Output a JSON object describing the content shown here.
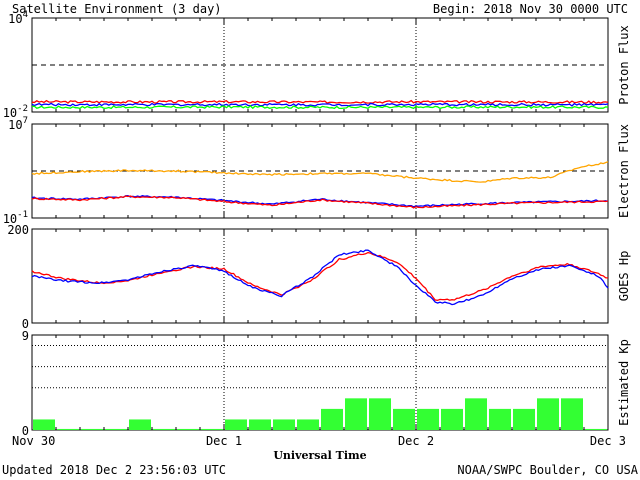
{
  "header": {
    "title": "Satellite Environment (3 day)",
    "begin": "Begin:  2018 Nov 30 0000 UTC"
  },
  "footer": {
    "updated": "Updated 2018 Dec  2 23:56:03 UTC",
    "credit": "NOAA/SWPC Boulder, CO USA"
  },
  "colors": {
    "red": "#ff0000",
    "blue": "#0000ff",
    "green": "#00ff00",
    "orange": "#ffa500",
    "bar": "#33ff33"
  },
  "x_axis": {
    "label": "Universal Time",
    "ticks": [
      {
        "day": 0,
        "label": "Nov 30"
      },
      {
        "day": 1,
        "label": "Dec 1"
      },
      {
        "day": 2,
        "label": "Dec 2"
      },
      {
        "day": 3,
        "label": "Dec 3"
      }
    ]
  },
  "chart_data": [
    {
      "type": "line",
      "name": "proton-flux",
      "ylabel": "Proton Flux",
      "yscale": "log",
      "ylim": [
        0.01,
        10000
      ],
      "ytick_labels": [
        {
          "base": "10",
          "exp": "4",
          "value": 10000
        },
        {
          "base": "10",
          "exp": "-2",
          "value": 0.01
        }
      ],
      "threshold": 10,
      "series": [
        {
          "color": "red",
          "x": [
            0,
            0.5,
            1,
            1.5,
            2,
            2.5,
            3
          ],
          "y": [
            0.045,
            0.044,
            0.045,
            0.043,
            0.045,
            0.044,
            0.043
          ]
        },
        {
          "color": "blue",
          "x": [
            0,
            0.5,
            1,
            1.5,
            2,
            2.5,
            3
          ],
          "y": [
            0.03,
            0.029,
            0.03,
            0.029,
            0.03,
            0.029,
            0.029
          ]
        },
        {
          "color": "green",
          "x": [
            0,
            0.5,
            1,
            1.5,
            2,
            2.5,
            3
          ],
          "y": [
            0.02,
            0.02,
            0.021,
            0.02,
            0.02,
            0.021,
            0.02
          ]
        }
      ]
    },
    {
      "type": "line",
      "name": "electron-flux",
      "ylabel": "Electron Flux",
      "yscale": "log",
      "ylim": [
        0.1,
        10000000
      ],
      "ytick_labels": [
        {
          "base": "10",
          "exp": "7",
          "value": 10000000
        },
        {
          "base": "10",
          "exp": "-1",
          "value": 0.1
        }
      ],
      "threshold": 1000,
      "series": [
        {
          "color": "orange",
          "x": [
            0,
            0.25,
            0.5,
            0.75,
            1.0,
            1.2,
            1.5,
            1.75,
            2.0,
            2.2,
            2.35,
            2.5,
            2.7,
            2.85,
            3.0
          ],
          "y": [
            600,
            900,
            1100,
            1000,
            700,
            500,
            600,
            600,
            250,
            150,
            120,
            250,
            280,
            2000,
            6000
          ]
        },
        {
          "color": "blue",
          "x": [
            0,
            0.25,
            0.5,
            0.75,
            1.0,
            1.25,
            1.5,
            1.75,
            2.0,
            2.25,
            2.5,
            2.75,
            3.0
          ],
          "y": [
            5,
            4,
            7,
            6,
            3,
            1.5,
            4,
            2,
            1,
            1.5,
            2,
            2.5,
            3
          ]
        },
        {
          "color": "red",
          "x": [
            0,
            0.25,
            0.5,
            0.75,
            1.0,
            1.25,
            1.5,
            1.75,
            2.0,
            2.25,
            2.5,
            2.75,
            3.0
          ],
          "y": [
            4.5,
            3.5,
            6.5,
            5.5,
            2.5,
            1.2,
            3.5,
            1.8,
            0.8,
            1.2,
            1.8,
            2.2,
            2.6
          ]
        }
      ]
    },
    {
      "type": "line",
      "name": "goes-hp",
      "ylabel": "GOES Hp",
      "yscale": "linear",
      "ylim": [
        0,
        200
      ],
      "ytick_labels": [
        {
          "label": "200",
          "value": 200
        },
        {
          "label": "0",
          "value": 0
        }
      ],
      "series": [
        {
          "color": "red",
          "x": [
            0,
            0.15,
            0.35,
            0.5,
            0.7,
            0.85,
            1.0,
            1.15,
            1.3,
            1.45,
            1.6,
            1.75,
            1.9,
            2.0,
            2.1,
            2.2,
            2.35,
            2.5,
            2.65,
            2.8,
            2.95,
            3.0
          ],
          "y": [
            110,
            95,
            85,
            90,
            110,
            120,
            115,
            80,
            60,
            90,
            135,
            150,
            130,
            95,
            50,
            50,
            70,
            100,
            120,
            125,
            105,
            95
          ]
        },
        {
          "color": "blue",
          "x": [
            0,
            0.15,
            0.35,
            0.5,
            0.7,
            0.85,
            1.0,
            1.15,
            1.3,
            1.45,
            1.6,
            1.75,
            1.9,
            2.0,
            2.1,
            2.2,
            2.35,
            2.5,
            2.65,
            2.8,
            2.95,
            3.0
          ],
          "y": [
            100,
            90,
            85,
            92,
            112,
            122,
            110,
            75,
            58,
            95,
            145,
            155,
            120,
            80,
            45,
            40,
            60,
            95,
            115,
            122,
            100,
            75
          ]
        }
      ]
    },
    {
      "type": "bar",
      "name": "estimated-kp",
      "ylabel": "Estimated Kp",
      "ylim": [
        0,
        9
      ],
      "ytick_labels": [
        {
          "label": "9",
          "value": 9
        },
        {
          "label": "0",
          "value": 0
        }
      ],
      "gridlines": [
        4,
        6,
        8
      ],
      "interval_hours": 3,
      "values": [
        1,
        0,
        0,
        0,
        1,
        0,
        0,
        0,
        1,
        1,
        1,
        1,
        2,
        3,
        3,
        2,
        2,
        2,
        3,
        2,
        2,
        3,
        3,
        0
      ]
    }
  ]
}
